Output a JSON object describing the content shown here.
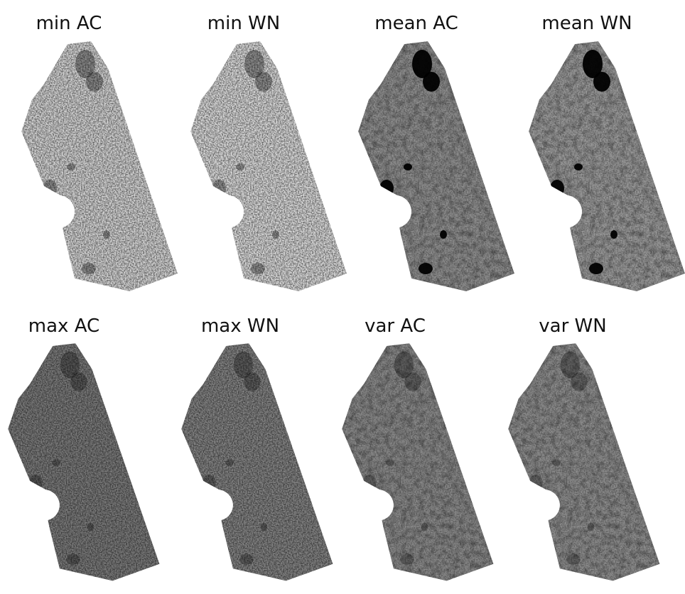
{
  "panels": [
    {
      "label": "min AC"
    },
    {
      "label": "min WN"
    },
    {
      "label": "mean AC"
    },
    {
      "label": "mean WN"
    },
    {
      "label": "max AC"
    },
    {
      "label": "max WN"
    },
    {
      "label": "var AC"
    },
    {
      "label": "var WN"
    }
  ]
}
